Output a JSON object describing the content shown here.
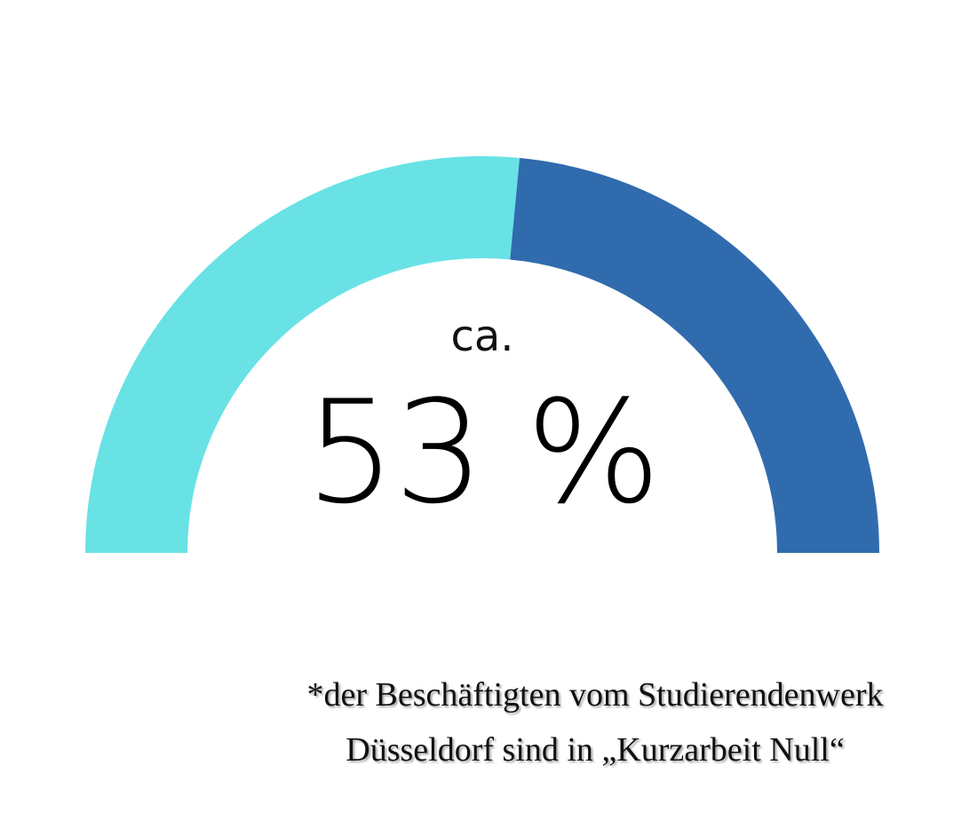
{
  "chart_data": {
    "type": "pie",
    "style": "semicircle-gauge",
    "segments": [
      {
        "value": 53,
        "color": "#68e2e5"
      },
      {
        "value": 47,
        "color": "#306bae"
      }
    ],
    "center_prefix": "ca.",
    "center_value": "53 %"
  },
  "footnote": {
    "line1": "*der Beschäftigten vom Studierendenwerk",
    "line2": "Düsseldorf sind in „Kurzarbeit Null“"
  }
}
